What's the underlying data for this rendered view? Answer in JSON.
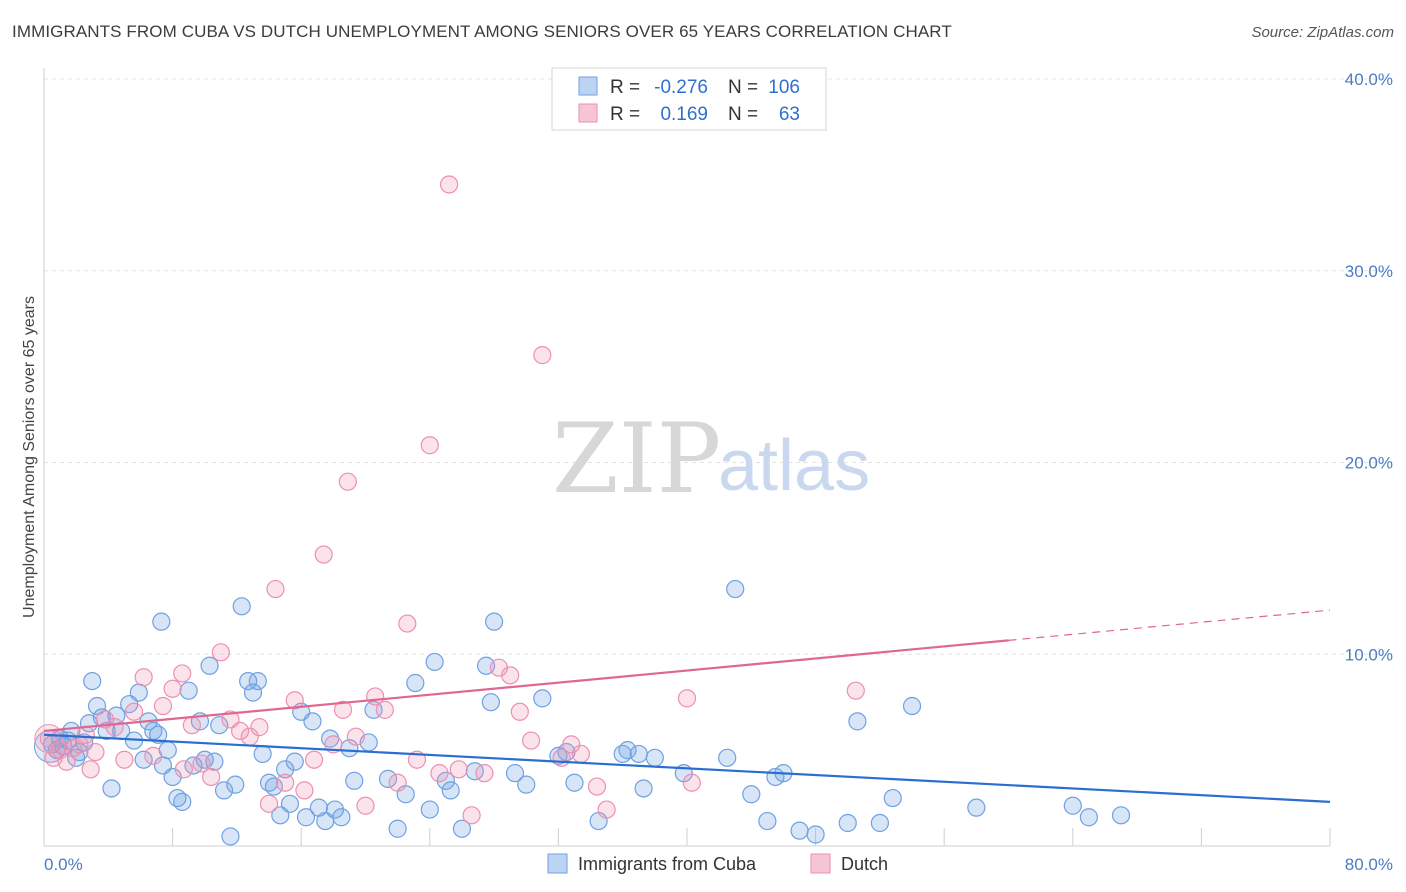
{
  "title": "IMMIGRANTS FROM CUBA VS DUTCH UNEMPLOYMENT AMONG SENIORS OVER 65 YEARS CORRELATION CHART",
  "source": "Source: ZipAtlas.com",
  "watermark": {
    "zip": "ZIP",
    "atlas": "atlas"
  },
  "colors": {
    "blue": "#6fa1e2",
    "blue_line": "#2a6fd0",
    "pink": "#ee8fb0",
    "pink_line": "#e0678f",
    "tick": "#4a7cc4"
  },
  "legend": {
    "r_label": "R =",
    "n_label": "N =",
    "rows": [
      {
        "r": "-0.276",
        "n": "106"
      },
      {
        "r": "0.169",
        "n": "63"
      }
    ]
  },
  "bottom_legend": [
    "Immigrants from Cuba",
    "Dutch"
  ],
  "chart_data": {
    "type": "scatter",
    "ylabel": "Unemployment Among Seniors over 65 years",
    "xlim": [
      0,
      80
    ],
    "ylim": [
      0,
      40
    ],
    "x_ticks": [
      "0.0%",
      "80.0%"
    ],
    "y_ticks": [
      "10.0%",
      "20.0%",
      "30.0%",
      "40.0%"
    ],
    "grid": true,
    "series": [
      {
        "name": "Immigrants from Cuba",
        "trend": {
          "x": [
            0,
            80
          ],
          "y": [
            5.8,
            2.3
          ]
        },
        "points": [
          [
            0.5,
            5.3
          ],
          [
            0.8,
            5.0
          ],
          [
            1.0,
            5.6
          ],
          [
            1.2,
            5.2
          ],
          [
            1.5,
            5.5
          ],
          [
            1.7,
            6.0
          ],
          [
            2.0,
            4.6
          ],
          [
            2.2,
            4.9
          ],
          [
            2.5,
            5.4
          ],
          [
            2.8,
            6.4
          ],
          [
            3.0,
            8.6
          ],
          [
            3.3,
            7.3
          ],
          [
            3.6,
            6.7
          ],
          [
            3.9,
            6.0
          ],
          [
            4.2,
            3.0
          ],
          [
            4.5,
            6.8
          ],
          [
            4.8,
            6.0
          ],
          [
            5.3,
            7.4
          ],
          [
            5.6,
            5.5
          ],
          [
            5.9,
            8.0
          ],
          [
            6.2,
            4.5
          ],
          [
            6.5,
            6.5
          ],
          [
            6.8,
            6.0
          ],
          [
            7.1,
            5.8
          ],
          [
            7.4,
            4.2
          ],
          [
            7.7,
            5.0
          ],
          [
            8.0,
            3.6
          ],
          [
            8.3,
            2.5
          ],
          [
            8.6,
            2.3
          ],
          [
            9.0,
            8.1
          ],
          [
            9.3,
            4.2
          ],
          [
            9.7,
            6.5
          ],
          [
            10.0,
            4.5
          ],
          [
            10.3,
            9.4
          ],
          [
            10.6,
            4.4
          ],
          [
            10.9,
            6.3
          ],
          [
            11.2,
            2.9
          ],
          [
            11.6,
            0.5
          ],
          [
            11.9,
            3.2
          ],
          [
            12.3,
            12.5
          ],
          [
            12.7,
            8.6
          ],
          [
            13.0,
            8.0
          ],
          [
            13.3,
            8.6
          ],
          [
            13.6,
            4.8
          ],
          [
            14.0,
            3.3
          ],
          [
            14.3,
            3.1
          ],
          [
            14.7,
            1.6
          ],
          [
            15.0,
            4.0
          ],
          [
            15.3,
            2.2
          ],
          [
            15.6,
            4.4
          ],
          [
            16.0,
            7.0
          ],
          [
            16.3,
            1.5
          ],
          [
            16.7,
            6.5
          ],
          [
            17.1,
            2.0
          ],
          [
            17.5,
            1.3
          ],
          [
            17.8,
            5.6
          ],
          [
            18.1,
            1.9
          ],
          [
            18.5,
            1.5
          ],
          [
            19.0,
            5.1
          ],
          [
            19.3,
            3.4
          ],
          [
            20.2,
            5.4
          ],
          [
            20.5,
            7.1
          ],
          [
            21.4,
            3.5
          ],
          [
            22.0,
            0.9
          ],
          [
            22.5,
            2.7
          ],
          [
            23.1,
            8.5
          ],
          [
            24.0,
            1.9
          ],
          [
            24.3,
            9.6
          ],
          [
            25.0,
            3.4
          ],
          [
            25.3,
            2.9
          ],
          [
            26.0,
            0.9
          ],
          [
            26.8,
            3.9
          ],
          [
            27.5,
            9.4
          ],
          [
            27.8,
            7.5
          ],
          [
            28.0,
            11.7
          ],
          [
            29.3,
            3.8
          ],
          [
            30.0,
            3.2
          ],
          [
            31.0,
            7.7
          ],
          [
            32.0,
            4.7
          ],
          [
            32.5,
            4.9
          ],
          [
            33.0,
            3.3
          ],
          [
            34.5,
            1.3
          ],
          [
            36.0,
            4.8
          ],
          [
            36.3,
            5.0
          ],
          [
            37.0,
            4.8
          ],
          [
            37.3,
            3.0
          ],
          [
            38.0,
            4.6
          ],
          [
            39.8,
            3.8
          ],
          [
            42.5,
            4.6
          ],
          [
            44.0,
            2.7
          ],
          [
            45.5,
            3.6
          ],
          [
            46.0,
            3.8
          ],
          [
            47.0,
            0.8
          ],
          [
            48.0,
            0.6
          ],
          [
            50.0,
            1.2
          ],
          [
            50.6,
            6.5
          ],
          [
            52.0,
            1.2
          ],
          [
            52.8,
            2.5
          ],
          [
            54.0,
            7.3
          ],
          [
            58.0,
            2.0
          ],
          [
            64.0,
            2.1
          ],
          [
            65.0,
            1.5
          ],
          [
            67.0,
            1.6
          ],
          [
            43.0,
            13.4
          ],
          [
            7.3,
            11.7
          ],
          [
            45.0,
            1.3
          ]
        ]
      },
      {
        "name": "Dutch",
        "trend": {
          "x": [
            0,
            80
          ],
          "y": [
            6.0,
            12.3
          ]
        },
        "points": [
          [
            0.3,
            5.6
          ],
          [
            0.6,
            4.6
          ],
          [
            1.0,
            5.0
          ],
          [
            1.4,
            4.4
          ],
          [
            1.8,
            5.1
          ],
          [
            2.2,
            5.3
          ],
          [
            2.6,
            5.8
          ],
          [
            3.2,
            4.9
          ],
          [
            3.8,
            6.6
          ],
          [
            4.4,
            6.2
          ],
          [
            5.0,
            4.5
          ],
          [
            5.6,
            7.0
          ],
          [
            6.2,
            8.8
          ],
          [
            6.8,
            4.7
          ],
          [
            7.4,
            7.3
          ],
          [
            8.0,
            8.2
          ],
          [
            8.6,
            9.0
          ],
          [
            9.2,
            6.3
          ],
          [
            9.8,
            4.3
          ],
          [
            10.4,
            3.6
          ],
          [
            11.0,
            10.1
          ],
          [
            11.6,
            6.6
          ],
          [
            12.2,
            6.0
          ],
          [
            12.8,
            5.7
          ],
          [
            13.4,
            6.2
          ],
          [
            14.0,
            2.2
          ],
          [
            14.4,
            13.4
          ],
          [
            15.0,
            3.3
          ],
          [
            15.6,
            7.6
          ],
          [
            16.2,
            2.9
          ],
          [
            16.8,
            4.5
          ],
          [
            17.4,
            15.2
          ],
          [
            18.0,
            5.3
          ],
          [
            18.6,
            7.1
          ],
          [
            18.9,
            19.0
          ],
          [
            19.4,
            5.7
          ],
          [
            20.0,
            2.1
          ],
          [
            20.6,
            7.8
          ],
          [
            21.2,
            7.1
          ],
          [
            22.0,
            3.3
          ],
          [
            22.6,
            11.6
          ],
          [
            23.2,
            4.5
          ],
          [
            24.0,
            20.9
          ],
          [
            24.6,
            3.8
          ],
          [
            25.2,
            34.5
          ],
          [
            25.8,
            4.0
          ],
          [
            26.6,
            1.6
          ],
          [
            27.4,
            3.8
          ],
          [
            28.3,
            9.3
          ],
          [
            29.0,
            8.9
          ],
          [
            29.6,
            7.0
          ],
          [
            30.3,
            5.5
          ],
          [
            31.0,
            25.6
          ],
          [
            32.2,
            4.6
          ],
          [
            32.8,
            5.3
          ],
          [
            33.4,
            4.8
          ],
          [
            34.4,
            3.1
          ],
          [
            35.0,
            1.9
          ],
          [
            40.0,
            7.7
          ],
          [
            40.3,
            3.3
          ],
          [
            50.5,
            8.1
          ],
          [
            8.7,
            4.0
          ],
          [
            2.9,
            4.0
          ]
        ]
      }
    ]
  }
}
